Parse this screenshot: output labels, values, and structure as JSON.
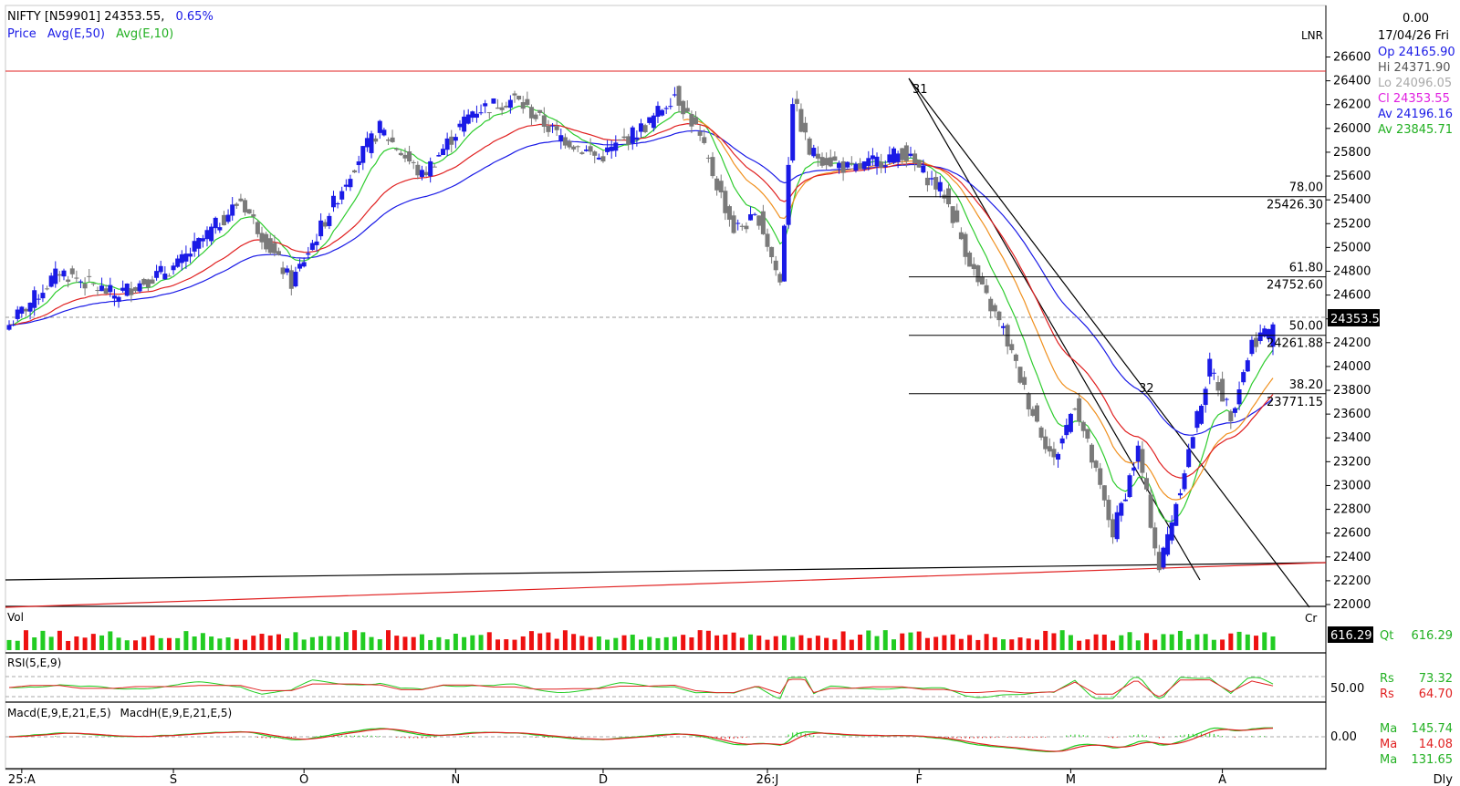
{
  "header": {
    "symbol": "NIFTY [N59901]",
    "last": "24353.55,",
    "change_pct": "0.65%",
    "legend_price": "Price",
    "legend_avg50": "Avg(E,50)",
    "legend_avg10": "Avg(E,10)"
  },
  "info_panel": {
    "top_value": "0.00",
    "date": "17/04/26 Fri",
    "open": "Op 24165.90",
    "high": "Hi 24371.90",
    "low": "Lo 24096.05",
    "close": "Cl 24353.55",
    "av1": "Av 24196.16",
    "av2": "Av 23845.71"
  },
  "axis": {
    "currency": "LNR",
    "yticks": [
      "26600",
      "26400",
      "26200",
      "26000",
      "25800",
      "25600",
      "25400",
      "25200",
      "25000",
      "24800",
      "24600",
      "24400",
      "24200",
      "24000",
      "23800",
      "23600",
      "23400",
      "23200",
      "23000",
      "22800",
      "22600",
      "22400",
      "22200",
      "22000"
    ],
    "xlabels": [
      "25:A",
      "S",
      "O",
      "N",
      "D",
      "26:J",
      "F",
      "M",
      "A"
    ],
    "period": "Dly",
    "last_price_box": "24353.5",
    "cr_label": "Cr"
  },
  "annotations": {
    "wave_a": "31",
    "wave_b": "32"
  },
  "fibonacci": [
    {
      "pct": "78.00",
      "level": "25426.30"
    },
    {
      "pct": "61.80",
      "level": "24752.60"
    },
    {
      "pct": "50.00",
      "level": "24261.88"
    },
    {
      "pct": "38.20",
      "level": "23771.15"
    }
  ],
  "volume": {
    "label": "Vol",
    "box": "616.29",
    "qt_label": "Qt",
    "qt_value": "616.29"
  },
  "rsi": {
    "label": "RSI(5,E,9)",
    "level": "50.00",
    "rs1_label": "Rs",
    "rs1": "73.32",
    "rs2_label": "Rs",
    "rs2": "64.70"
  },
  "macd": {
    "label1": "Macd(E,9,E,21,E,5)",
    "label2": "MacdH(E,9,E,21,E,5)",
    "level": "0.00",
    "m1_label": "Ma",
    "m1": "145.74",
    "m2_label": "Ma",
    "m2": "14.08",
    "m3_label": "Ma",
    "m3": "131.65"
  },
  "colors": {
    "up_candle": "#1a1ae6",
    "down_candle": "#7a7a7a",
    "ema10": "#2ecc2e",
    "ema50": "#1a1ae6",
    "orange_avg": "#f0901e",
    "red_avg": "#e02020",
    "vol_up": "#22cc22",
    "vol_down": "#ee1111"
  },
  "chart_data": {
    "type": "candlestick",
    "y_range": [
      22000,
      26600
    ],
    "months": [
      "25:A",
      "S",
      "O",
      "N",
      "D",
      "26:J",
      "F",
      "M",
      "A"
    ],
    "close_path": [
      {
        "t": 0,
        "c": 24350
      },
      {
        "t": 12,
        "c": 24800
      },
      {
        "t": 25,
        "c": 24600
      },
      {
        "t": 40,
        "c": 24850
      },
      {
        "t": 55,
        "c": 25400
      },
      {
        "t": 67,
        "c": 24700
      },
      {
        "t": 82,
        "c": 25700
      },
      {
        "t": 88,
        "c": 26000
      },
      {
        "t": 98,
        "c": 25600
      },
      {
        "t": 110,
        "c": 26150
      },
      {
        "t": 120,
        "c": 26250
      },
      {
        "t": 130,
        "c": 25950
      },
      {
        "t": 140,
        "c": 25750
      },
      {
        "t": 152,
        "c": 26050
      },
      {
        "t": 158,
        "c": 26300
      },
      {
        "t": 163,
        "c": 26000
      },
      {
        "t": 172,
        "c": 25150
      },
      {
        "t": 178,
        "c": 25250
      },
      {
        "t": 183,
        "c": 24700
      },
      {
        "t": 186,
        "c": 26250
      },
      {
        "t": 190,
        "c": 25800
      },
      {
        "t": 200,
        "c": 25650
      },
      {
        "t": 212,
        "c": 25800
      },
      {
        "t": 222,
        "c": 25450
      },
      {
        "t": 230,
        "c": 24700
      },
      {
        "t": 236,
        "c": 24300
      },
      {
        "t": 242,
        "c": 23700
      },
      {
        "t": 248,
        "c": 23200
      },
      {
        "t": 253,
        "c": 23700
      },
      {
        "t": 262,
        "c": 22600
      },
      {
        "t": 268,
        "c": 23300
      },
      {
        "t": 273,
        "c": 22300
      },
      {
        "t": 278,
        "c": 23000
      },
      {
        "t": 285,
        "c": 24000
      },
      {
        "t": 290,
        "c": 23600
      },
      {
        "t": 295,
        "c": 24200
      },
      {
        "t": 300,
        "c": 24353
      }
    ],
    "last": {
      "date": "17/04/26",
      "open": 24165.9,
      "high": 24371.9,
      "low": 24096.05,
      "close": 24353.55
    },
    "fib_levels": [
      25426.3,
      24752.6,
      24261.88,
      23771.15
    ]
  }
}
